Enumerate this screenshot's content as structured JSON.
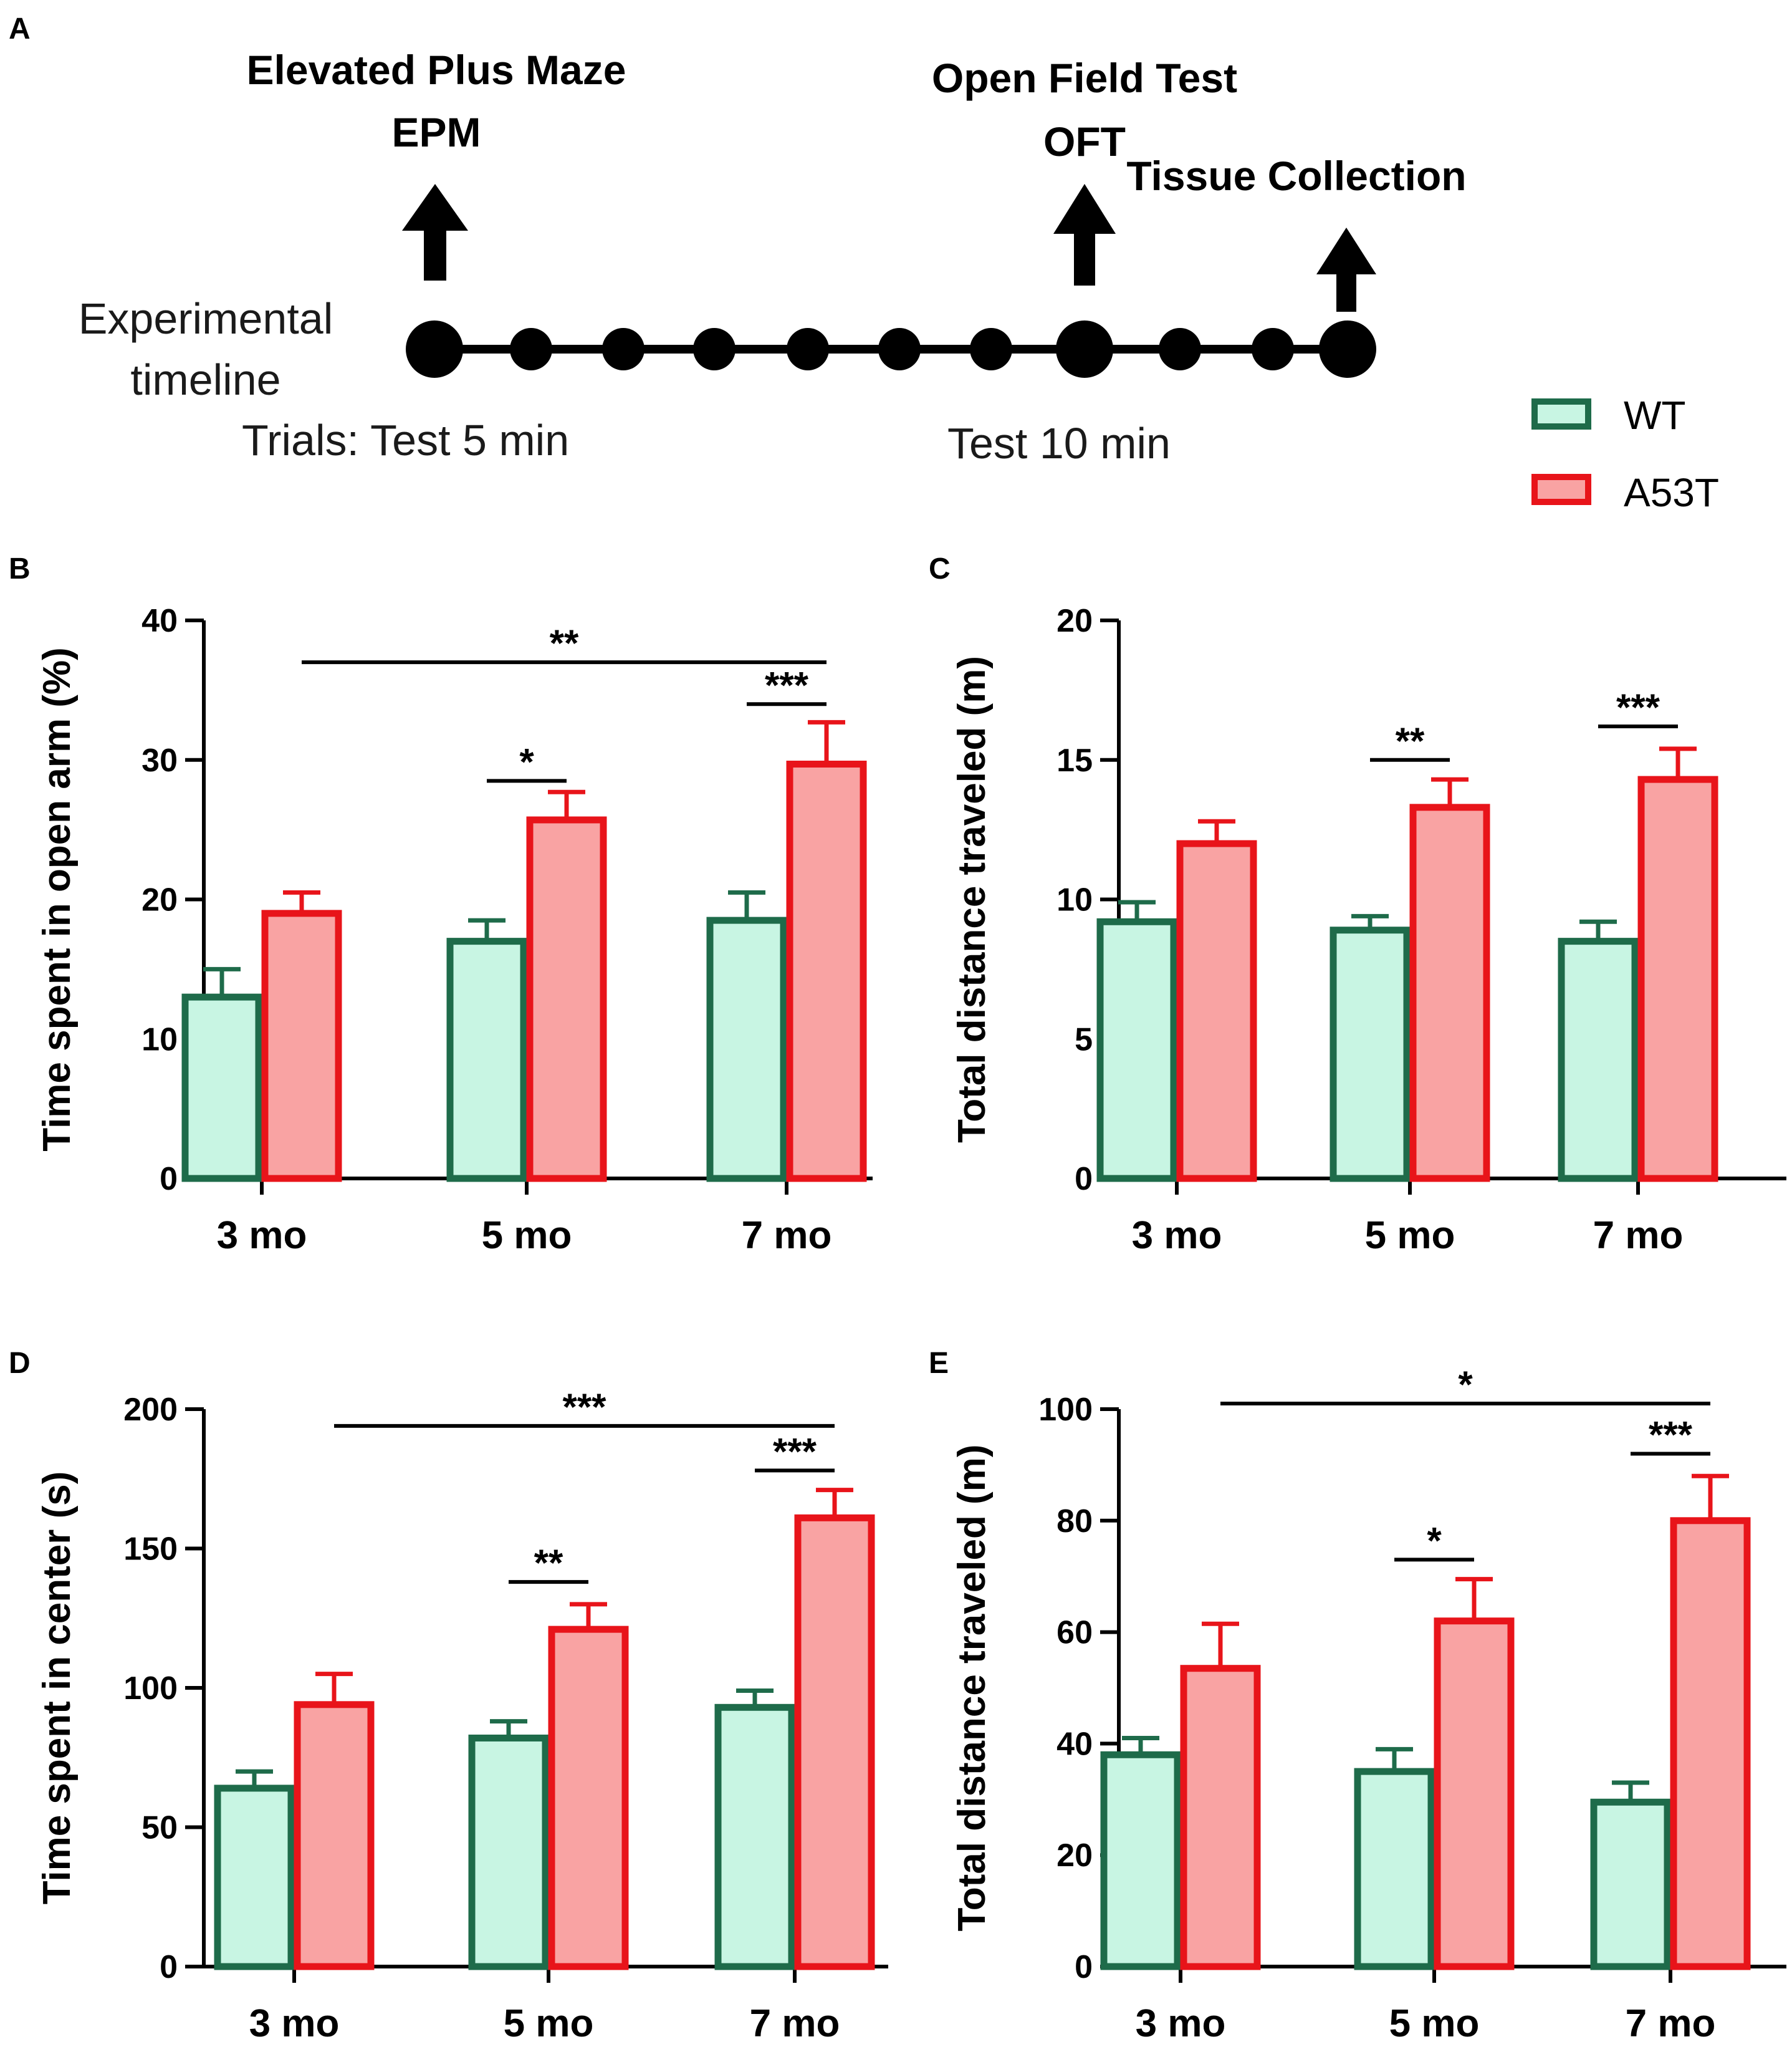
{
  "panels": {
    "a": "A",
    "b": "B",
    "c": "C",
    "d": "D",
    "e": "E"
  },
  "timeline": {
    "events": {
      "epm_line1": "Elevated Plus Maze",
      "epm_line2": "EPM",
      "oft_line1": "Open Field Test",
      "oft_line2": "OFT",
      "tissue": "Tissue Collection"
    },
    "label_line1": "Experimental",
    "label_line2": "timeline",
    "trials_label": "Trials: Test 5 min",
    "test10_label": "Test 10 min",
    "dots": 11
  },
  "legend": {
    "wt": "WT",
    "a53t": "A53T"
  },
  "colors": {
    "wt_fill": "#c8f5e3",
    "wt_stroke": "#1e6b4a",
    "a53t_fill": "#f9a3a3",
    "a53t_stroke": "#e8141a"
  },
  "chart_data": [
    {
      "id": "B",
      "type": "bar",
      "categories": [
        "3 mo",
        "5 mo",
        "7 mo"
      ],
      "ylabel": "Time spent in open arm (%)",
      "ylim": [
        0,
        40
      ],
      "yticks": [
        0,
        10,
        20,
        30,
        40
      ],
      "series": [
        {
          "name": "WT",
          "values": [
            13,
            17,
            18.5
          ],
          "errors": [
            2,
            1.5,
            2
          ]
        },
        {
          "name": "A53T",
          "values": [
            19,
            25.7,
            29.7
          ],
          "errors": [
            1.5,
            2,
            3
          ]
        }
      ],
      "significance": [
        {
          "label": "*",
          "from": [
            1,
            0
          ],
          "to": [
            1,
            1
          ],
          "y": 28.5
        },
        {
          "label": "***",
          "from": [
            2,
            0
          ],
          "to": [
            2,
            1
          ],
          "y": 34
        },
        {
          "label": "**",
          "from": [
            0,
            1
          ],
          "to": [
            2,
            1
          ],
          "y": 37
        }
      ]
    },
    {
      "id": "C",
      "type": "bar",
      "categories": [
        "3 mo",
        "5 mo",
        "7 mo"
      ],
      "ylabel": "Total distance traveled (m)",
      "ylim": [
        0,
        20
      ],
      "yticks": [
        0,
        5,
        10,
        15,
        20
      ],
      "series": [
        {
          "name": "WT",
          "values": [
            9.2,
            8.9,
            8.5
          ],
          "errors": [
            0.7,
            0.5,
            0.7
          ]
        },
        {
          "name": "A53T",
          "values": [
            12,
            13.3,
            14.3
          ],
          "errors": [
            0.8,
            1,
            1.1
          ]
        }
      ],
      "significance": [
        {
          "label": "**",
          "from": [
            1,
            0
          ],
          "to": [
            1,
            1
          ],
          "y": 15
        },
        {
          "label": "***",
          "from": [
            2,
            0
          ],
          "to": [
            2,
            1
          ],
          "y": 16.2
        }
      ]
    },
    {
      "id": "D",
      "type": "bar",
      "categories": [
        "3 mo",
        "5 mo",
        "7 mo"
      ],
      "ylabel": "Time spent in center (s)",
      "ylim": [
        0,
        200
      ],
      "yticks": [
        0,
        50,
        100,
        150,
        200
      ],
      "series": [
        {
          "name": "WT",
          "values": [
            64,
            82,
            93
          ],
          "errors": [
            6,
            6,
            6
          ]
        },
        {
          "name": "A53T",
          "values": [
            94,
            121,
            161
          ],
          "errors": [
            11,
            9,
            10
          ]
        }
      ],
      "significance": [
        {
          "label": "**",
          "from": [
            1,
            0
          ],
          "to": [
            1,
            1
          ],
          "y": 138
        },
        {
          "label": "***",
          "from": [
            2,
            0
          ],
          "to": [
            2,
            1
          ],
          "y": 178
        },
        {
          "label": "***",
          "from": [
            0,
            1
          ],
          "to": [
            2,
            1
          ],
          "y": 194
        }
      ]
    },
    {
      "id": "E",
      "type": "bar",
      "categories": [
        "3 mo",
        "5 mo",
        "7 mo"
      ],
      "ylabel": "Total distance traveled (m)",
      "ylim": [
        0,
        100
      ],
      "yticks": [
        0,
        20,
        40,
        60,
        80,
        100
      ],
      "series": [
        {
          "name": "WT",
          "values": [
            38,
            35,
            29.5
          ],
          "errors": [
            3,
            4,
            3.5
          ]
        },
        {
          "name": "A53T",
          "values": [
            53.5,
            62,
            80
          ],
          "errors": [
            8,
            7.5,
            8
          ]
        }
      ],
      "significance": [
        {
          "label": "*",
          "from": [
            1,
            0
          ],
          "to": [
            1,
            1
          ],
          "y": 73
        },
        {
          "label": "***",
          "from": [
            2,
            0
          ],
          "to": [
            2,
            1
          ],
          "y": 92
        },
        {
          "label": "*",
          "from": [
            0,
            1
          ],
          "to": [
            2,
            1
          ],
          "y": 101
        }
      ]
    }
  ]
}
